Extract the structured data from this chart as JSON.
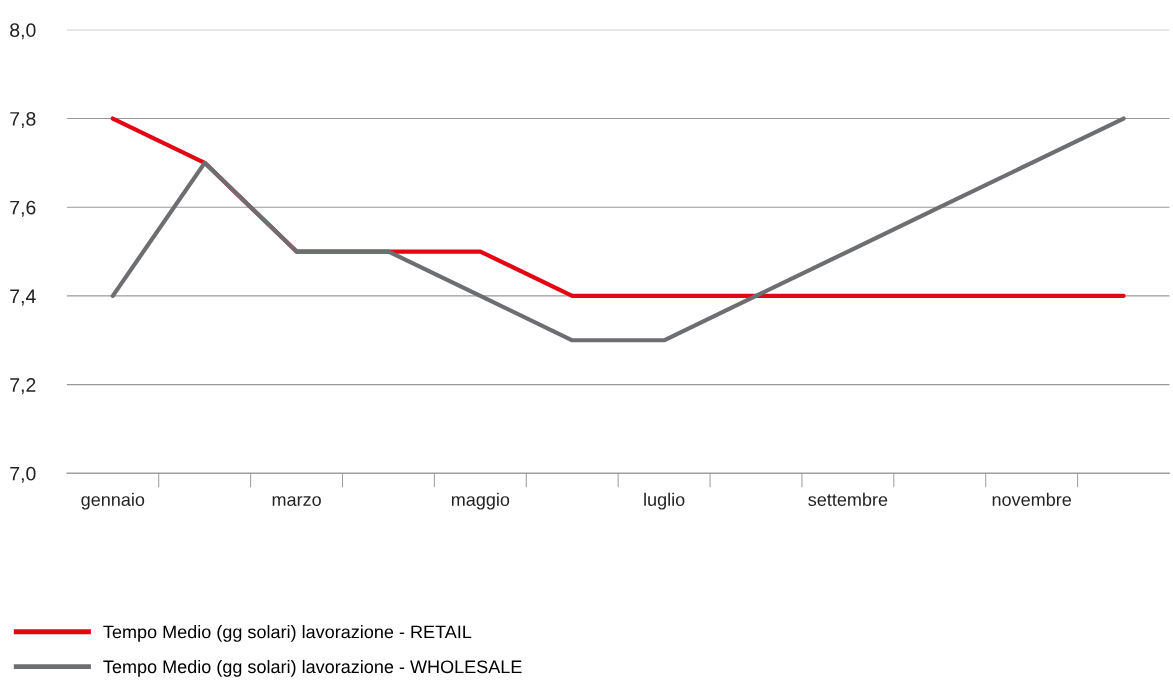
{
  "chart_data": {
    "type": "line",
    "categories": [
      "gennaio",
      null,
      "marzo",
      null,
      "maggio",
      null,
      "luglio",
      null,
      "settembre",
      null,
      "novembre",
      null
    ],
    "series": [
      {
        "name": "Tempo Medio (gg solari) lavorazione - RETAIL",
        "color": "#e30613",
        "values": [
          7.8,
          7.7,
          7.5,
          7.5,
          7.5,
          7.4,
          7.4,
          7.4,
          7.4,
          7.4,
          7.4,
          7.4
        ]
      },
      {
        "name": "Tempo Medio (gg solari) lavorazione - WHOLESALE",
        "color": "#6d6e71",
        "values": [
          7.4,
          7.7,
          7.5,
          7.5,
          7.4,
          7.3,
          7.3,
          7.4,
          7.5,
          7.6,
          7.7,
          7.8
        ]
      }
    ],
    "ylim": [
      7.0,
      8.0
    ],
    "yticks": [
      {
        "value": 7.0,
        "label": "7,0"
      },
      {
        "value": 7.2,
        "label": "7,2"
      },
      {
        "value": 7.4,
        "label": "7,4"
      },
      {
        "value": 7.6,
        "label": "7,6"
      },
      {
        "value": 7.8,
        "label": "7,8"
      },
      {
        "value": 8.0,
        "label": "8,0"
      }
    ],
    "grid": "y",
    "legend": "bottom left",
    "marker": "none",
    "line_style": "solid"
  }
}
